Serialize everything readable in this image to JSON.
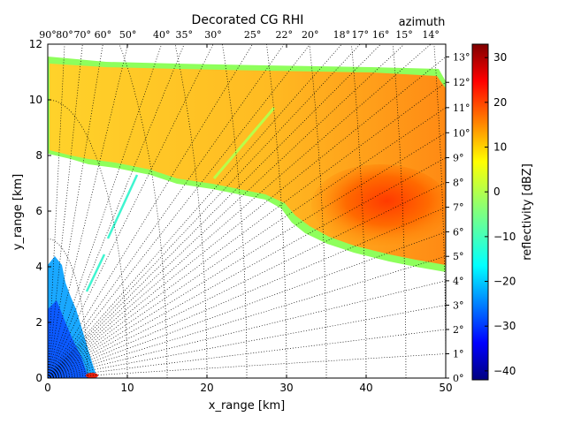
{
  "chart_data": {
    "type": "heatmap",
    "title": "Decorated CG RHI",
    "xlabel": "x_range [km]",
    "ylabel": "y_range [km]",
    "xlim": [
      0,
      50
    ],
    "ylim": [
      0,
      12
    ],
    "xticks": [
      "0",
      "10",
      "20",
      "30",
      "40",
      "50"
    ],
    "yticks": [
      "0",
      "2",
      "4",
      "6",
      "8",
      "10",
      "12"
    ],
    "top_axis_label": "azimuth",
    "top_axis_ticks": [
      "90°",
      "80°",
      "70°",
      "60°",
      "50°",
      "40°",
      "35°",
      "30°",
      "25°",
      "22°",
      "20°",
      "18°",
      "17°",
      "16°",
      "15°",
      "14°"
    ],
    "top_axis_tick_values_deg": [
      90,
      80,
      70,
      60,
      50,
      40,
      35,
      30,
      25,
      22,
      20,
      18,
      17,
      16,
      15,
      14
    ],
    "right_axis_ticks": [
      "0°",
      "1°",
      "2°",
      "3°",
      "4°",
      "5°",
      "6°",
      "7°",
      "8°",
      "9°",
      "10°",
      "11°",
      "12°",
      "13°"
    ],
    "right_axis_tick_values_deg": [
      0,
      1,
      2,
      3,
      4,
      5,
      6,
      7,
      8,
      9,
      10,
      11,
      12,
      13
    ],
    "grid": "dotted polar (azimuth rays and elevation curves)",
    "colorbar": {
      "label": "reflectivity [dBZ]",
      "range": [
        -42,
        33
      ],
      "ticks": [
        "−40",
        "−30",
        "−20",
        "−10",
        "0",
        "10",
        "20",
        "30"
      ],
      "tick_values": [
        -40,
        -30,
        -20,
        -10,
        0,
        10,
        20,
        30
      ],
      "colormap": "jet"
    },
    "echo_features": [
      {
        "name": "upper-anvil",
        "x_range_km": [
          0,
          50
        ],
        "top_km": [
          11.4,
          10.8
        ],
        "base_km": [
          8.0,
          4.0
        ],
        "dominant_dbz": [
          5,
          25
        ]
      },
      {
        "name": "core",
        "x_range_km": [
          35,
          50
        ],
        "y_range_km": [
          4.5,
          7.5
        ],
        "peak_dbz": 25
      },
      {
        "name": "near-range-clutter",
        "x_range_km": [
          0,
          6
        ],
        "y_range_km": [
          0,
          4.5
        ],
        "dbz": [
          -35,
          -15
        ]
      }
    ]
  },
  "colors": {
    "jet": [
      "#00007f",
      "#0000ff",
      "#007fff",
      "#00ffff",
      "#7fff7f",
      "#ffff00",
      "#ff7f00",
      "#ff0000",
      "#7f0000"
    ],
    "grid": "#000000",
    "background": "#ffffff"
  }
}
